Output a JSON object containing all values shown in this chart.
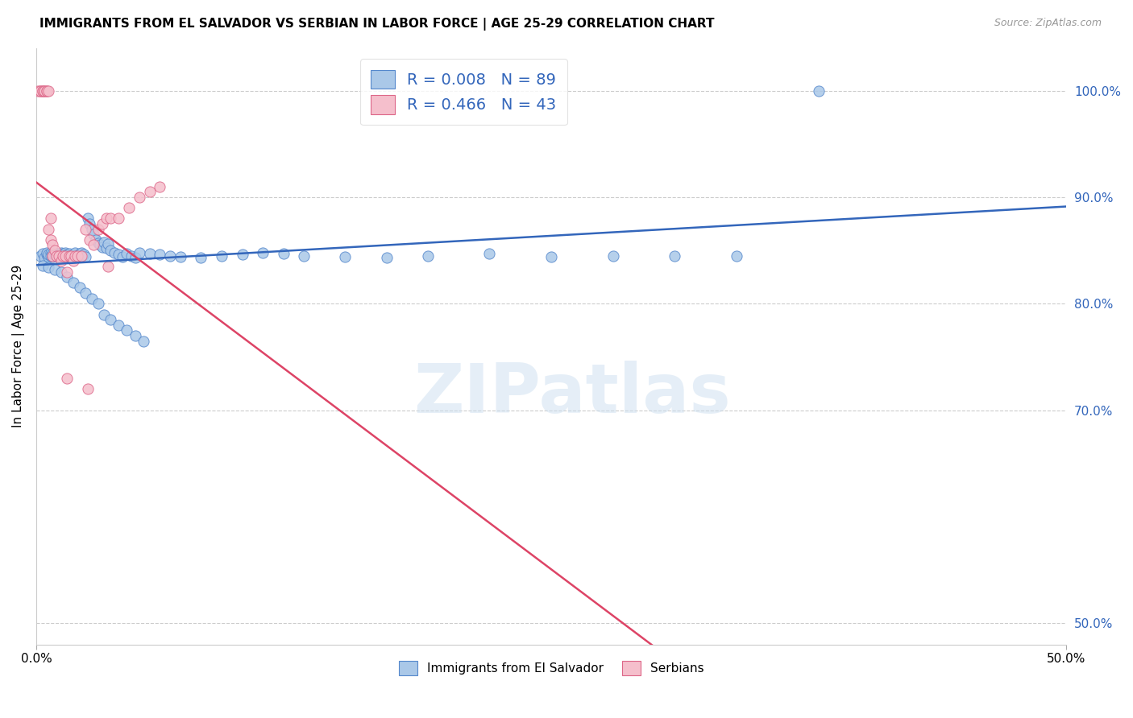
{
  "title": "IMMIGRANTS FROM EL SALVADOR VS SERBIAN IN LABOR FORCE | AGE 25-29 CORRELATION CHART",
  "source": "Source: ZipAtlas.com",
  "ylabel": "In Labor Force | Age 25-29",
  "blue_color": "#aac8e8",
  "blue_edge_color": "#5588cc",
  "blue_line_color": "#3366bb",
  "pink_color": "#f5bfcc",
  "pink_edge_color": "#dd6688",
  "pink_line_color": "#dd4466",
  "legend_R_blue": "R = 0.008",
  "legend_N_blue": "N = 89",
  "legend_R_pink": "R = 0.466",
  "legend_N_pink": "N = 43",
  "xmin": 0.0,
  "xmax": 0.5,
  "ymin": 0.48,
  "ymax": 1.04,
  "right_ytick_labels": [
    "100.0%",
    "90.0%",
    "80.0%",
    "70.0%",
    "50.0%"
  ],
  "right_ytick_values": [
    1.0,
    0.9,
    0.8,
    0.7,
    0.5
  ],
  "watermark": "ZIPatlas",
  "label_el_salvador": "Immigrants from El Salvador",
  "label_serbians": "Serbians",
  "blue_x": [
    0.002,
    0.003,
    0.004,
    0.005,
    0.005,
    0.006,
    0.006,
    0.007,
    0.007,
    0.008,
    0.008,
    0.009,
    0.009,
    0.01,
    0.01,
    0.011,
    0.011,
    0.012,
    0.012,
    0.013,
    0.013,
    0.014,
    0.014,
    0.015,
    0.015,
    0.016,
    0.016,
    0.017,
    0.018,
    0.019,
    0.02,
    0.021,
    0.022,
    0.023,
    0.024,
    0.025,
    0.026,
    0.027,
    0.028,
    0.029,
    0.03,
    0.031,
    0.032,
    0.033,
    0.034,
    0.035,
    0.036,
    0.038,
    0.04,
    0.042,
    0.044,
    0.046,
    0.048,
    0.05,
    0.055,
    0.06,
    0.065,
    0.07,
    0.08,
    0.09,
    0.1,
    0.11,
    0.12,
    0.13,
    0.15,
    0.17,
    0.19,
    0.22,
    0.25,
    0.28,
    0.31,
    0.34,
    0.38,
    0.003,
    0.006,
    0.009,
    0.012,
    0.015,
    0.018,
    0.021,
    0.024,
    0.027,
    0.03,
    0.033,
    0.036,
    0.04,
    0.044,
    0.048,
    0.052
  ],
  "blue_y": [
    0.845,
    0.847,
    0.843,
    0.846,
    0.848,
    0.844,
    0.846,
    0.848,
    0.845,
    0.844,
    0.847,
    0.846,
    0.848,
    0.845,
    0.847,
    0.844,
    0.846,
    0.848,
    0.845,
    0.844,
    0.847,
    0.845,
    0.848,
    0.846,
    0.844,
    0.847,
    0.845,
    0.843,
    0.846,
    0.848,
    0.845,
    0.847,
    0.848,
    0.846,
    0.844,
    0.88,
    0.875,
    0.87,
    0.865,
    0.86,
    0.857,
    0.855,
    0.853,
    0.858,
    0.852,
    0.856,
    0.85,
    0.848,
    0.846,
    0.844,
    0.847,
    0.845,
    0.843,
    0.848,
    0.847,
    0.846,
    0.845,
    0.844,
    0.843,
    0.845,
    0.846,
    0.848,
    0.847,
    0.845,
    0.844,
    0.843,
    0.845,
    0.847,
    0.844,
    0.845,
    0.845,
    0.845,
    1.0,
    0.836,
    0.834,
    0.832,
    0.83,
    0.825,
    0.82,
    0.815,
    0.81,
    0.805,
    0.8,
    0.79,
    0.785,
    0.78,
    0.775,
    0.77,
    0.765
  ],
  "pink_x": [
    0.001,
    0.002,
    0.002,
    0.003,
    0.003,
    0.004,
    0.004,
    0.005,
    0.005,
    0.006,
    0.006,
    0.007,
    0.007,
    0.008,
    0.008,
    0.009,
    0.01,
    0.011,
    0.012,
    0.013,
    0.014,
    0.015,
    0.016,
    0.017,
    0.018,
    0.019,
    0.02,
    0.022,
    0.024,
    0.026,
    0.028,
    0.03,
    0.032,
    0.034,
    0.036,
    0.04,
    0.045,
    0.05,
    0.055,
    0.06,
    0.015,
    0.025,
    0.035
  ],
  "pink_y": [
    1.0,
    1.0,
    1.0,
    1.0,
    1.0,
    1.0,
    1.0,
    1.0,
    1.0,
    1.0,
    0.87,
    0.86,
    0.88,
    0.855,
    0.845,
    0.85,
    0.845,
    0.845,
    0.84,
    0.845,
    0.845,
    0.83,
    0.845,
    0.845,
    0.84,
    0.845,
    0.845,
    0.845,
    0.87,
    0.86,
    0.855,
    0.87,
    0.875,
    0.88,
    0.88,
    0.88,
    0.89,
    0.9,
    0.905,
    0.91,
    0.73,
    0.72,
    0.835
  ]
}
